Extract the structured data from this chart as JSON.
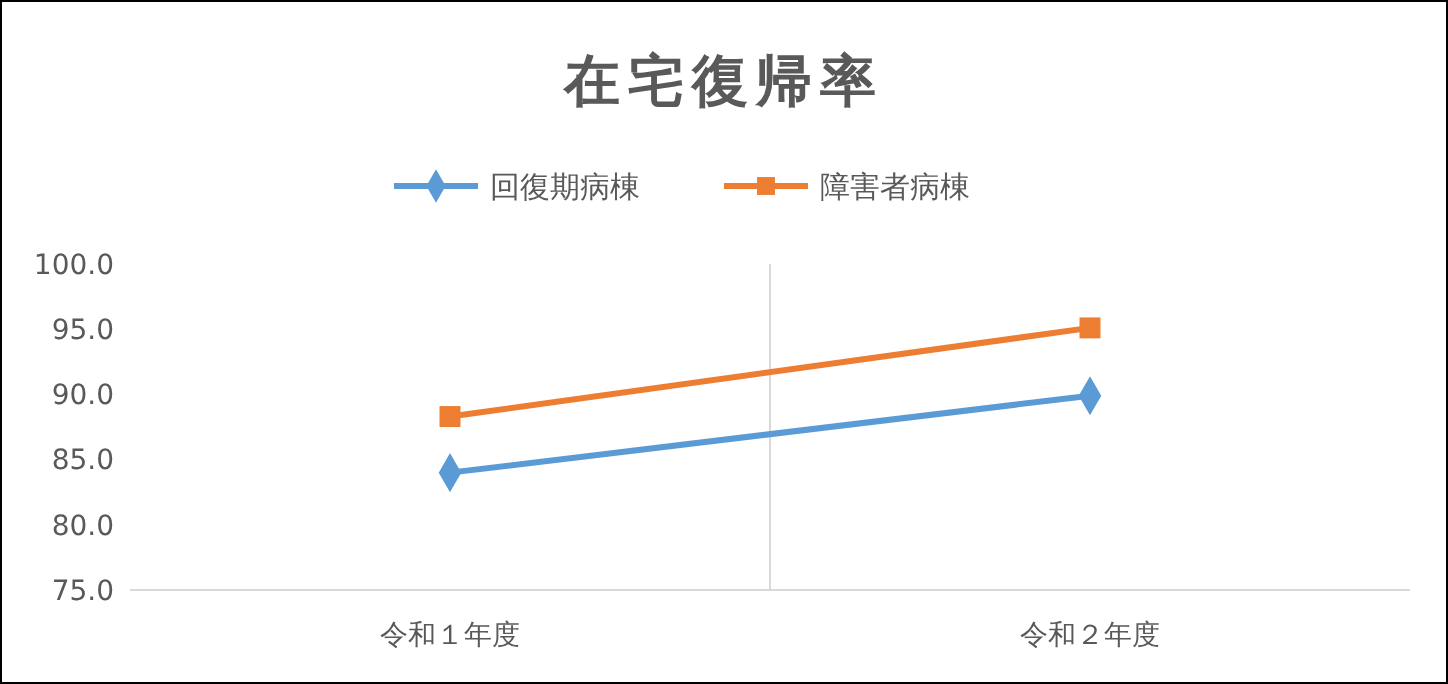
{
  "chart_data": {
    "type": "line",
    "title": "在宅復帰率",
    "categories": [
      "令和１年度",
      "令和２年度"
    ],
    "series": [
      {
        "name": "回復期病棟",
        "color": "#5b9bd5",
        "marker": "diamond",
        "values": [
          84.0,
          89.9
        ]
      },
      {
        "name": "障害者病棟",
        "color": "#ed7d31",
        "marker": "square",
        "values": [
          88.3,
          95.1
        ]
      }
    ],
    "ylim": [
      75,
      100
    ],
    "yticks": [
      {
        "value": 75,
        "label": "75.0"
      },
      {
        "value": 80,
        "label": "80.0"
      },
      {
        "value": 85,
        "label": "85.0"
      },
      {
        "value": 90,
        "label": "90.0"
      },
      {
        "value": 95,
        "label": "95.0"
      },
      {
        "value": 100,
        "label": "100.0"
      }
    ],
    "grid": "x",
    "legend": "top",
    "line_style": "solid"
  }
}
